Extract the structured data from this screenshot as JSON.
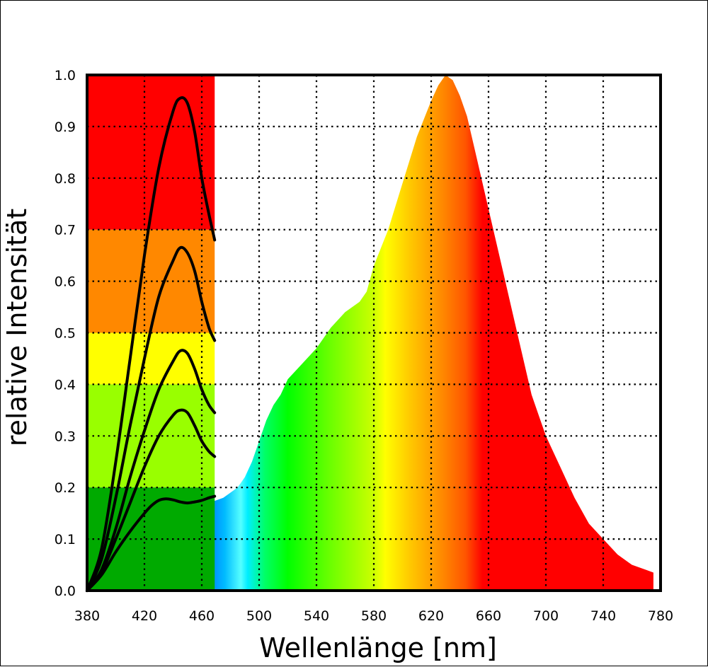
{
  "chart_data": {
    "type": "area",
    "xlabel": "Wellenlänge [nm]",
    "ylabel": "relative Intensität",
    "xlim": [
      380,
      780
    ],
    "ylim": [
      0,
      1.0
    ],
    "x_ticks": [
      380,
      420,
      460,
      500,
      540,
      580,
      620,
      660,
      700,
      740,
      780
    ],
    "y_ticks": [
      "0.0",
      "0.1",
      "0.2",
      "0.3",
      "0.4",
      "0.5",
      "0.6",
      "0.7",
      "0.8",
      "0.9",
      "1.0"
    ],
    "grid": true,
    "spectrum": {
      "x": [
        380,
        385,
        390,
        395,
        400,
        405,
        410,
        415,
        420,
        425,
        430,
        435,
        440,
        445,
        450,
        455,
        460,
        465,
        470,
        475,
        480,
        485,
        490,
        495,
        500,
        505,
        510,
        515,
        520,
        530,
        540,
        550,
        560,
        570,
        575,
        580,
        590,
        600,
        610,
        620,
        625,
        630,
        635,
        640,
        645,
        650,
        660,
        670,
        680,
        690,
        700,
        710,
        720,
        730,
        740,
        750,
        760,
        770,
        775
      ],
      "y": [
        0.0,
        0.01,
        0.025,
        0.045,
        0.06,
        0.07,
        0.065,
        0.055,
        0.05,
        0.06,
        0.08,
        0.1,
        0.12,
        0.14,
        0.15,
        0.16,
        0.165,
        0.17,
        0.175,
        0.18,
        0.19,
        0.2,
        0.22,
        0.25,
        0.29,
        0.33,
        0.36,
        0.38,
        0.41,
        0.44,
        0.47,
        0.51,
        0.54,
        0.56,
        0.58,
        0.63,
        0.7,
        0.79,
        0.88,
        0.95,
        0.98,
        1.0,
        0.99,
        0.96,
        0.92,
        0.86,
        0.74,
        0.62,
        0.5,
        0.38,
        0.3,
        0.24,
        0.18,
        0.13,
        0.1,
        0.07,
        0.05,
        0.04,
        0.035
      ]
    },
    "inset_bands": [
      {
        "from": 0.7,
        "to": 1.0,
        "color": "#ff0000"
      },
      {
        "from": 0.5,
        "to": 0.7,
        "color": "#ff8800"
      },
      {
        "from": 0.4,
        "to": 0.5,
        "color": "#ffff00"
      },
      {
        "from": 0.2,
        "to": 0.4,
        "color": "#99ff00"
      },
      {
        "from": 0.0,
        "to": 0.2,
        "color": "#00aa00"
      }
    ],
    "inset_x_max": 469,
    "inset_curves": [
      {
        "x": [
          380,
          390,
          400,
          410,
          420,
          430,
          440,
          445,
          450,
          455,
          460,
          465,
          469
        ],
        "y": [
          0.0,
          0.08,
          0.25,
          0.45,
          0.65,
          0.82,
          0.93,
          0.955,
          0.945,
          0.89,
          0.8,
          0.73,
          0.68
        ]
      },
      {
        "x": [
          380,
          390,
          400,
          410,
          420,
          430,
          440,
          445,
          450,
          455,
          460,
          465,
          469
        ],
        "y": [
          0.0,
          0.06,
          0.18,
          0.32,
          0.45,
          0.57,
          0.64,
          0.665,
          0.655,
          0.62,
          0.56,
          0.51,
          0.485
        ]
      },
      {
        "x": [
          380,
          390,
          400,
          410,
          420,
          430,
          440,
          445,
          450,
          455,
          460,
          465,
          469
        ],
        "y": [
          0.0,
          0.04,
          0.12,
          0.22,
          0.31,
          0.39,
          0.445,
          0.465,
          0.46,
          0.43,
          0.39,
          0.36,
          0.345
        ]
      },
      {
        "x": [
          380,
          390,
          400,
          410,
          420,
          430,
          440,
          445,
          450,
          455,
          460,
          465,
          469
        ],
        "y": [
          0.0,
          0.035,
          0.1,
          0.17,
          0.24,
          0.3,
          0.34,
          0.35,
          0.345,
          0.32,
          0.29,
          0.27,
          0.26
        ]
      },
      {
        "x": [
          380,
          390,
          400,
          410,
          420,
          425,
          430,
          435,
          440,
          445,
          450,
          455,
          460,
          465,
          469
        ],
        "y": [
          0.0,
          0.03,
          0.075,
          0.115,
          0.15,
          0.165,
          0.175,
          0.178,
          0.176,
          0.172,
          0.17,
          0.172,
          0.175,
          0.18,
          0.183
        ]
      }
    ]
  }
}
